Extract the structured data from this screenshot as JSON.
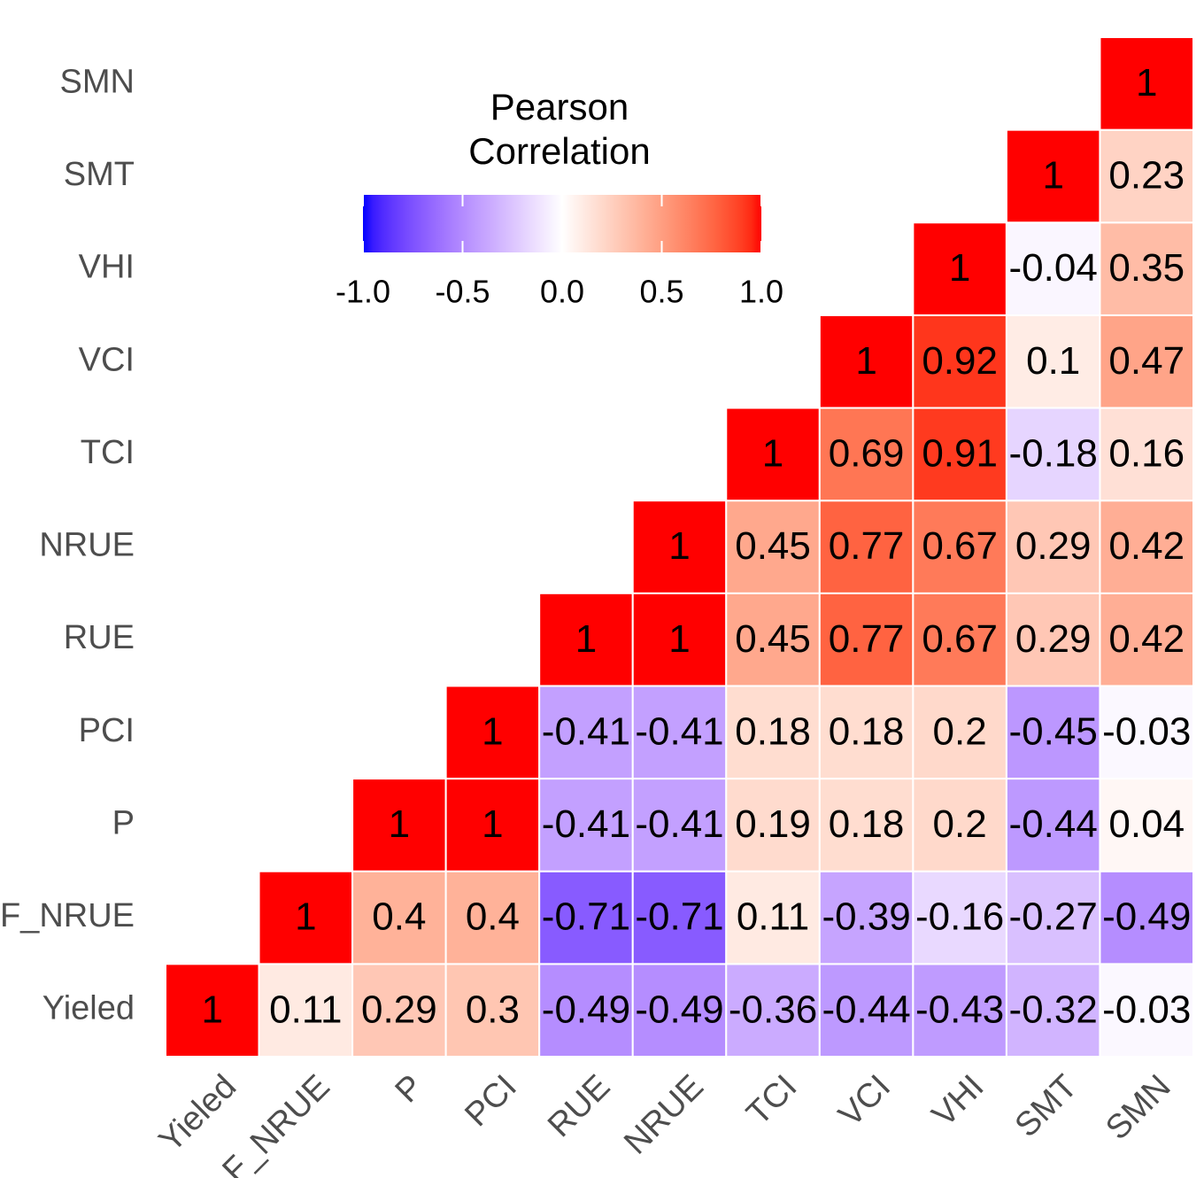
{
  "chart_data": {
    "type": "heatmap",
    "variables": [
      "Yieled",
      "F_NRUE",
      "P",
      "PCI",
      "RUE",
      "NRUE",
      "TCI",
      "VCI",
      "VHI",
      "SMT",
      "SMN"
    ],
    "values": [
      [
        1,
        0.11,
        0.29,
        0.3,
        -0.49,
        -0.49,
        -0.36,
        -0.44,
        -0.43,
        -0.32,
        -0.03
      ],
      [
        null,
        1,
        0.4,
        0.4,
        -0.71,
        -0.71,
        0.11,
        -0.39,
        -0.16,
        -0.27,
        -0.49
      ],
      [
        null,
        null,
        1,
        1,
        -0.41,
        -0.41,
        0.19,
        0.18,
        0.2,
        -0.44,
        0.04
      ],
      [
        null,
        null,
        null,
        1,
        -0.41,
        -0.41,
        0.18,
        0.18,
        0.2,
        -0.45,
        -0.03
      ],
      [
        null,
        null,
        null,
        null,
        1,
        1,
        0.45,
        0.77,
        0.67,
        0.29,
        0.42
      ],
      [
        null,
        null,
        null,
        null,
        null,
        1,
        0.45,
        0.77,
        0.67,
        0.29,
        0.42
      ],
      [
        null,
        null,
        null,
        null,
        null,
        null,
        1,
        0.69,
        0.91,
        -0.18,
        0.16
      ],
      [
        null,
        null,
        null,
        null,
        null,
        null,
        null,
        1,
        0.92,
        0.1,
        0.47
      ],
      [
        null,
        null,
        null,
        null,
        null,
        null,
        null,
        null,
        1,
        -0.04,
        0.35
      ],
      [
        null,
        null,
        null,
        null,
        null,
        null,
        null,
        null,
        null,
        1,
        0.23
      ],
      [
        null,
        null,
        null,
        null,
        null,
        null,
        null,
        null,
        null,
        null,
        1
      ]
    ],
    "colors": {
      "low": "#0000ff",
      "mid": "#ffffff",
      "high": "#ff0000"
    },
    "clim": [
      -1,
      1
    ],
    "legend": {
      "title": [
        "Pearson",
        "Correlation"
      ],
      "ticks": [
        {
          "value": -1,
          "label": "-1.0"
        },
        -0.5,
        {
          "value": 0,
          "label": "0.0"
        },
        0.5,
        {
          "value": 1,
          "label": "1.0"
        }
      ]
    }
  }
}
